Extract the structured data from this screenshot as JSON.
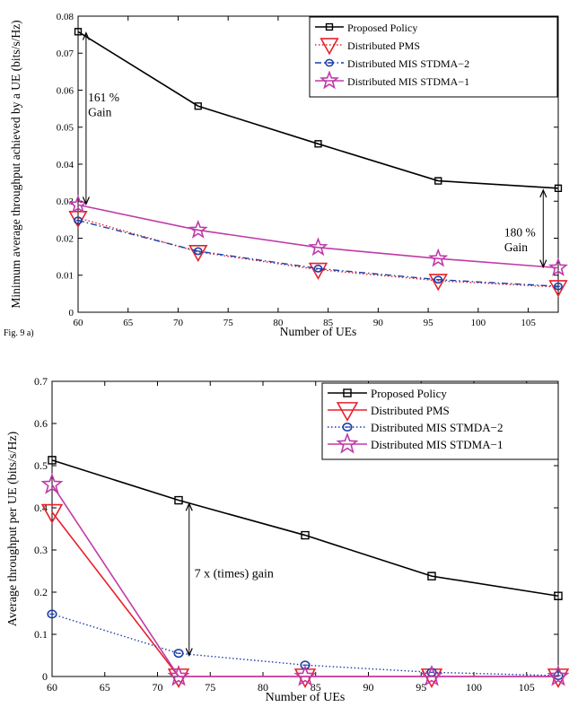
{
  "caption": "Fig. 9 a)",
  "chart_data": [
    {
      "type": "line",
      "xlabel": "Number of UEs",
      "ylabel": "Minimum average throughput achieved by a UE (bits/s/Hz)",
      "xlim": [
        60,
        108
      ],
      "ylim": [
        0,
        0.08
      ],
      "xticks": [
        60,
        65,
        70,
        75,
        80,
        85,
        90,
        95,
        100,
        105
      ],
      "yticks": [
        0,
        0.01,
        0.02,
        0.03,
        0.04,
        0.05,
        0.06,
        0.07,
        0.08
      ],
      "ytick_labels": [
        "0",
        "0.01",
        "0.02",
        "0.03",
        "0.04",
        "0.05",
        "0.06",
        "0.07",
        "0.08"
      ],
      "legend_position": "top-right",
      "x": [
        60,
        72,
        84,
        96,
        108
      ],
      "series": [
        {
          "name": "Proposed Policy",
          "values": [
            0.0758,
            0.0557,
            0.0455,
            0.0355,
            0.0335
          ],
          "color": "#000000",
          "marker": "square",
          "dash": "solid"
        },
        {
          "name": "Distributed PMS",
          "values": [
            0.0255,
            0.0163,
            0.0115,
            0.0085,
            0.0068
          ],
          "color": "#e8202a",
          "marker": "triangle-down",
          "dash": "dotted"
        },
        {
          "name": "Distributed MIS STDMA−2",
          "values": [
            0.0248,
            0.0165,
            0.0118,
            0.0088,
            0.007
          ],
          "color": "#1c3fa8",
          "marker": "circle",
          "dash": "dashdot"
        },
        {
          "name": "Distributed MIS STDMA−1",
          "values": [
            0.029,
            0.0222,
            0.0175,
            0.0145,
            0.012
          ],
          "color": "#c03aa8",
          "marker": "star",
          "dash": "solid"
        }
      ],
      "annotations": [
        {
          "lines": [
            "161 %",
            "Gain"
          ],
          "x": 61,
          "y": 0.057,
          "arrow_x": 60.8,
          "arrow_from": 0.0755,
          "arrow_to": 0.0292
        },
        {
          "lines": [
            "180 %",
            "Gain"
          ],
          "x": 102.6,
          "y": 0.0205,
          "arrow_x": 106.5,
          "arrow_from": 0.033,
          "arrow_to": 0.0122
        }
      ]
    },
    {
      "type": "line",
      "xlabel": "Number of UEs",
      "ylabel": "Average throughput per UE (bits/s/Hz)",
      "xlim": [
        60,
        108
      ],
      "ylim": [
        0,
        0.7
      ],
      "xticks": [
        60,
        65,
        70,
        75,
        80,
        85,
        90,
        95,
        100,
        105
      ],
      "yticks": [
        0,
        0.1,
        0.2,
        0.3,
        0.4,
        0.5,
        0.6,
        0.7
      ],
      "ytick_labels": [
        "0",
        "0.1",
        "0.2",
        "0.3",
        "0.4",
        "0.5",
        "0.6",
        "0.7"
      ],
      "legend_position": "top-right",
      "x": [
        60,
        72,
        84,
        96,
        108
      ],
      "series": [
        {
          "name": "Proposed Policy",
          "values": [
            0.513,
            0.418,
            0.335,
            0.238,
            0.191
          ],
          "color": "#000000",
          "marker": "square",
          "dash": "solid"
        },
        {
          "name": "Distributed PMS",
          "values": [
            0.39,
            0.0,
            0.0,
            0.0,
            0.0
          ],
          "color": "#e8202a",
          "marker": "triangle-down",
          "dash": "solid"
        },
        {
          "name": "Distributed MIS STMDA−2",
          "values": [
            0.148,
            0.055,
            0.027,
            0.01,
            0.002
          ],
          "color": "#1c3fa8",
          "marker": "circle",
          "dash": "dotted"
        },
        {
          "name": "Distributed MIS STDMA−1",
          "values": [
            0.455,
            0.0,
            0.0,
            0.0,
            0.0
          ],
          "color": "#c03aa8",
          "marker": "star",
          "dash": "solid"
        }
      ],
      "annotations": [
        {
          "lines": [
            "7 x (times) gain"
          ],
          "x": 73.5,
          "y": 0.235,
          "arrow_x": 73.0,
          "arrow_from": 0.41,
          "arrow_to": 0.05
        }
      ]
    }
  ]
}
